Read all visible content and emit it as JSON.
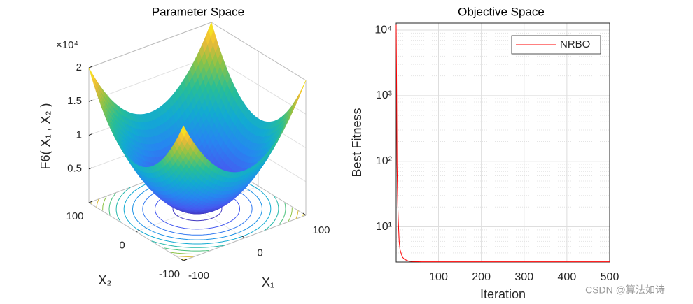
{
  "chart_data": [
    {
      "type": "surface",
      "title": "Parameter Space",
      "xlabel": "X₁",
      "ylabel": "X₂",
      "zlabel": "F6( X₁ , X₂ )",
      "xlim": [
        -100,
        100
      ],
      "ylim": [
        -100,
        100
      ],
      "zlim": [
        0,
        20000
      ],
      "xticks": [
        -100,
        0,
        100
      ],
      "yticks": [
        -100,
        0,
        100
      ],
      "zticks": [
        {
          "value": 5000,
          "label": "0.5"
        },
        {
          "value": 10000,
          "label": "1"
        },
        {
          "value": 15000,
          "label": "1.5"
        },
        {
          "value": 20000,
          "label": "2"
        }
      ],
      "z_exponent_label": "×10⁴",
      "colormap": "parula",
      "contour": true
    },
    {
      "type": "line",
      "title": "Objective Space",
      "xlabel": "Iteration",
      "ylabel": "Best Fitness",
      "yscale": "log",
      "xlim": [
        1,
        500
      ],
      "ylim": [
        2.9,
        12800
      ],
      "xticks": [
        100,
        200,
        300,
        400,
        500
      ],
      "yticks": [
        {
          "value": 10,
          "label": "10¹"
        },
        {
          "value": 100,
          "label": "10²"
        },
        {
          "value": 1000,
          "label": "10³"
        },
        {
          "value": 10000,
          "label": "10⁴"
        }
      ],
      "grid": true,
      "legend": "northeast",
      "series": [
        {
          "name": "NRBO",
          "color": "#ff0000",
          "x": [
            1,
            2,
            3,
            4,
            5,
            6,
            8,
            10,
            15,
            20,
            30,
            40,
            60,
            100,
            200,
            300,
            400,
            500
          ],
          "values": [
            12000,
            1500,
            90,
            40,
            20,
            12,
            6,
            4.5,
            3.5,
            3.2,
            3.0,
            2.95,
            2.93,
            2.93,
            2.93,
            2.93,
            2.93,
            2.93
          ]
        }
      ]
    }
  ],
  "watermark": "CSDN @算法如诗"
}
